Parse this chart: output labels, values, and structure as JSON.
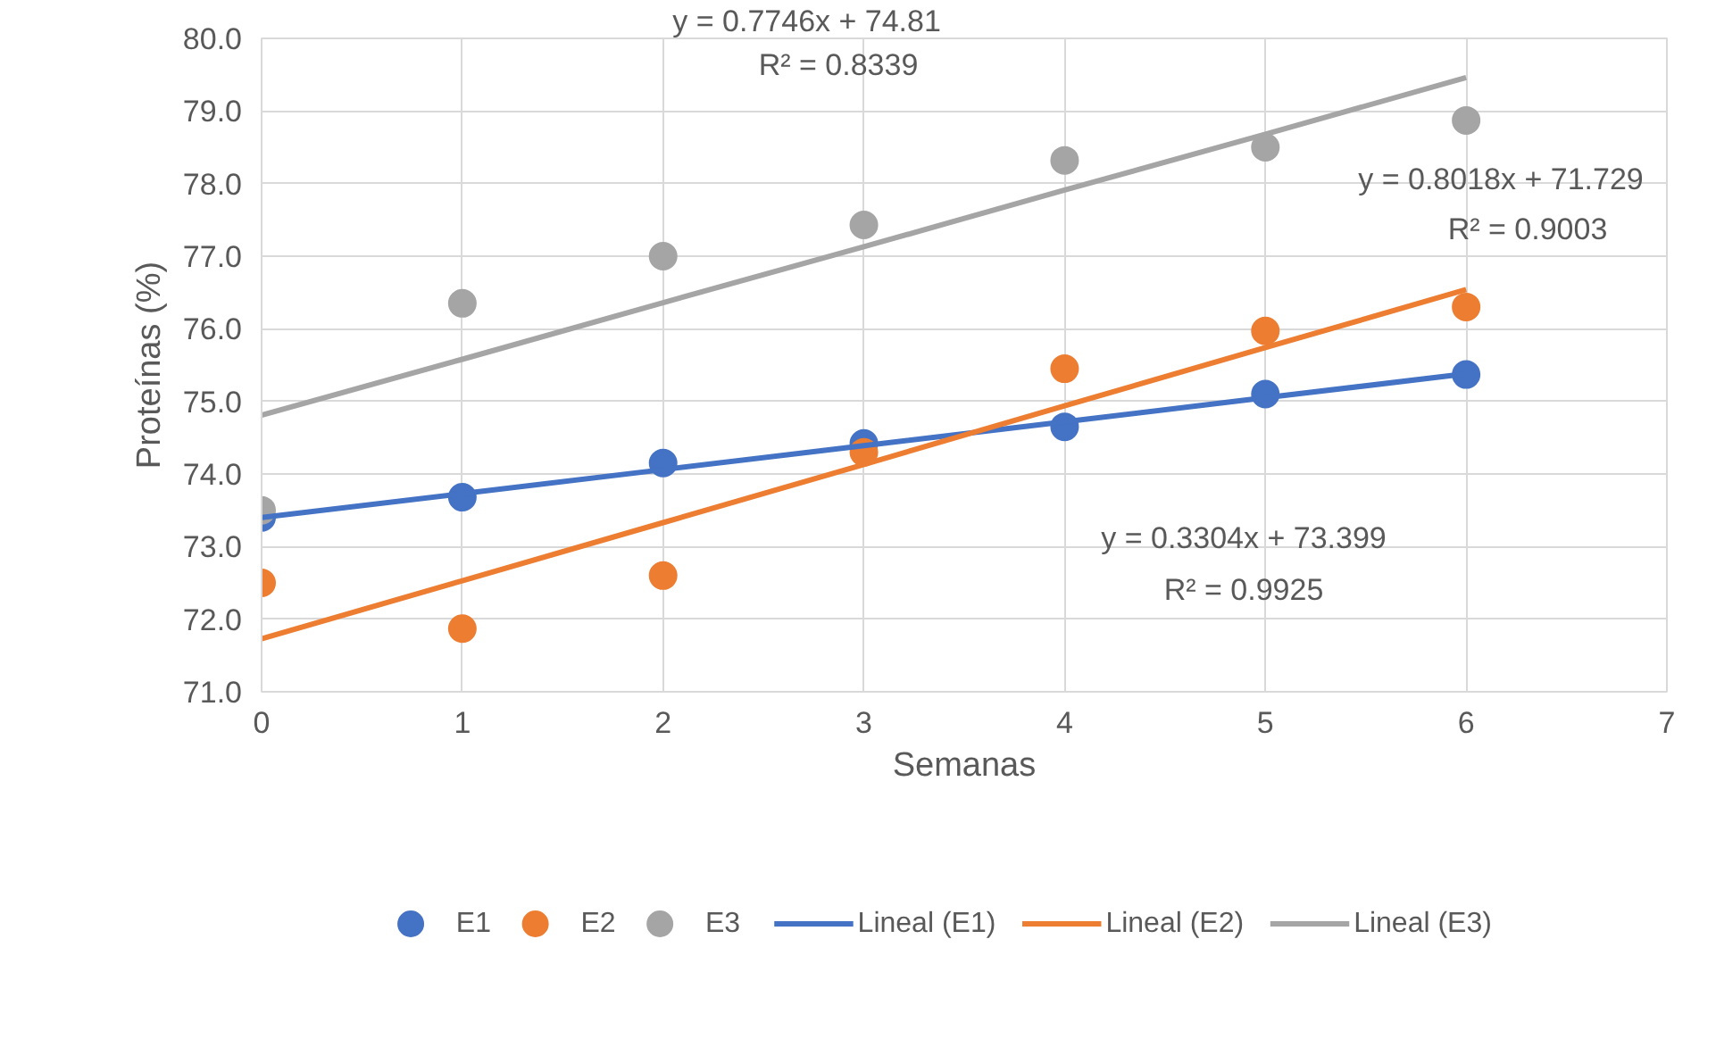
{
  "chart_data": {
    "type": "scatter",
    "xlabel": "Semanas",
    "ylabel": "Proteínas (%)",
    "xlim": [
      0,
      7
    ],
    "xticks": [
      0,
      1,
      2,
      3,
      4,
      5,
      6,
      7
    ],
    "ylim": [
      71,
      80
    ],
    "yticks": [
      {
        "value": 71,
        "label": "71.0"
      },
      {
        "value": 72,
        "label": "72.0"
      },
      {
        "value": 73,
        "label": "73.0"
      },
      {
        "value": 74,
        "label": "74.0"
      },
      {
        "value": 75,
        "label": "75.0"
      },
      {
        "value": 76,
        "label": "76.0"
      },
      {
        "value": 77,
        "label": "77.0"
      },
      {
        "value": 78,
        "label": "78.0"
      },
      {
        "value": 79,
        "label": "79.0"
      },
      {
        "value": 80,
        "label": "80.0"
      }
    ],
    "x": [
      0,
      1,
      2,
      3,
      4,
      5,
      6
    ],
    "series": [
      {
        "name": "E1",
        "color": "#4472c4",
        "values": [
          73.4,
          73.68,
          74.15,
          74.42,
          74.65,
          75.1,
          75.37
        ]
      },
      {
        "name": "E2",
        "color": "#ed7d31",
        "values": [
          72.5,
          71.87,
          72.6,
          74.3,
          75.45,
          75.97,
          76.3
        ]
      },
      {
        "name": "E3",
        "color": "#a5a5a5",
        "values": [
          73.5,
          76.35,
          77.0,
          77.43,
          78.32,
          78.5,
          78.87
        ]
      },
      {
        "name": "Lineal (E1)",
        "type": "line",
        "marker": "none",
        "color": "#4472c4",
        "values": [
          73.4,
          73.73,
          74.06,
          74.39,
          74.72,
          75.05,
          75.38
        ]
      },
      {
        "name": "Lineal (E2)",
        "type": "line",
        "marker": "none",
        "color": "#ed7d31",
        "values": [
          71.73,
          72.53,
          73.33,
          74.13,
          74.94,
          75.74,
          76.54
        ]
      },
      {
        "name": "Lineal (E3)",
        "type": "line",
        "marker": "none",
        "color": "#a5a5a5",
        "values": [
          74.81,
          75.58,
          76.36,
          77.13,
          77.91,
          78.68,
          79.46
        ]
      }
    ],
    "annotations": [
      "y = 0.7746x + 74.81",
      "R² = 0.8339",
      "y = 0.8018x + 71.729",
      "R² = 0.9003",
      "y = 0.3304x + 73.399",
      "R² = 0.9925"
    ],
    "grid": true,
    "legend": "bottom",
    "marker": "circle",
    "line_style": "solid"
  }
}
